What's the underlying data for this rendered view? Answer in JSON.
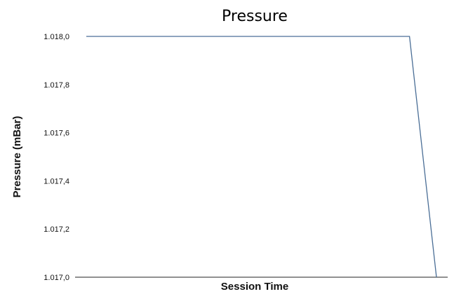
{
  "chart_data": {
    "type": "line",
    "title": "Pressure",
    "xlabel": "Session Time",
    "ylabel": "Pressure (mBar)",
    "ylim": [
      1017.0,
      1018.0
    ],
    "y_ticks": [
      "1.017,0",
      "1.017,2",
      "1.017,4",
      "1.017,6",
      "1.017,8",
      "1.018,0"
    ],
    "grid": false,
    "series": [
      {
        "values": [
          1018.0,
          1018.0,
          1017.0
        ]
      }
    ],
    "x_positions": [
      0.0,
      0.923,
      1.0
    ],
    "line_color": "#4a6e96"
  }
}
